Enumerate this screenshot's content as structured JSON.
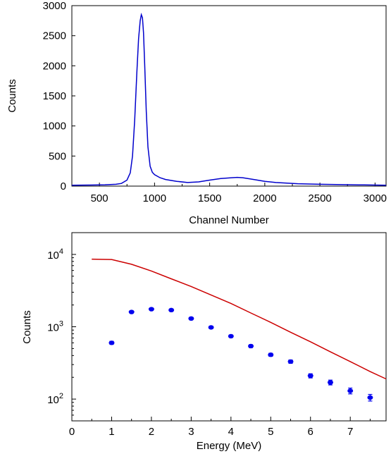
{
  "chart_data": [
    {
      "type": "line",
      "xlabel": "Channel Number",
      "ylabel": "Counts",
      "xlim": [
        250,
        3100
      ],
      "ylim": [
        0,
        3000
      ],
      "x_ticks": [
        500,
        1000,
        1500,
        2000,
        2500,
        3000
      ],
      "y_ticks": [
        0,
        500,
        1000,
        1500,
        2000,
        2500,
        3000
      ],
      "x_tick_labels": [
        "500",
        "1000",
        "1500",
        "2000",
        "2500",
        "3000"
      ],
      "y_tick_labels": [
        "0",
        "500",
        "1000",
        "1500",
        "2000",
        "2500",
        "3000"
      ],
      "grid": false,
      "series": [
        {
          "color": "#0000cc",
          "x": [
            250,
            400,
            550,
            650,
            700,
            750,
            780,
            800,
            820,
            840,
            855,
            870,
            880,
            890,
            900,
            910,
            925,
            940,
            960,
            980,
            1000,
            1050,
            1100,
            1200,
            1300,
            1400,
            1500,
            1600,
            1700,
            1750,
            1800,
            1900,
            2000,
            2100,
            2200,
            2300,
            2400,
            2500,
            2600,
            2700,
            2800,
            2900,
            3000,
            3100
          ],
          "y": [
            15,
            18,
            22,
            30,
            45,
            100,
            220,
            500,
            1100,
            1900,
            2450,
            2750,
            2850,
            2800,
            2550,
            2050,
            1250,
            650,
            330,
            230,
            190,
            140,
            110,
            80,
            60,
            70,
            100,
            125,
            140,
            145,
            140,
            110,
            80,
            60,
            50,
            40,
            35,
            30,
            28,
            25,
            22,
            20,
            18,
            15
          ]
        }
      ]
    },
    {
      "type": "scatter",
      "xlabel": "Energy (MeV)",
      "ylabel": "Counts",
      "xlim": [
        0,
        7.9
      ],
      "ylim": [
        50,
        20000
      ],
      "yscale": "log",
      "x_ticks": [
        0,
        1,
        2,
        3,
        4,
        5,
        6,
        7
      ],
      "x_tick_labels": [
        "0",
        "1",
        "2",
        "3",
        "4",
        "5",
        "6",
        "7"
      ],
      "y_ticks": [
        100,
        1000,
        10000
      ],
      "y_tick_labels": [
        "10",
        "10",
        "10"
      ],
      "y_tick_superscripts": [
        "2",
        "3",
        "4"
      ],
      "grid": false,
      "series": [
        {
          "color": "#cc0000",
          "style": "line",
          "x": [
            0.5,
            1.0,
            1.5,
            2.0,
            2.5,
            3.0,
            3.5,
            4.0,
            4.5,
            5.0,
            5.5,
            6.0,
            6.5,
            7.0,
            7.5,
            7.9
          ],
          "y": [
            8600,
            8500,
            7300,
            5900,
            4600,
            3600,
            2750,
            2100,
            1550,
            1150,
            840,
            620,
            450,
            330,
            240,
            190
          ]
        },
        {
          "color": "#0000ee",
          "style": "points",
          "x": [
            1.0,
            1.5,
            2.0,
            2.5,
            3.0,
            3.5,
            4.0,
            4.5,
            5.0,
            5.5,
            6.0,
            6.5,
            7.0,
            7.5
          ],
          "y": [
            600,
            1600,
            1750,
            1700,
            1300,
            980,
            740,
            540,
            410,
            330,
            210,
            170,
            130,
            105
          ],
          "yerr": [
            30,
            50,
            55,
            50,
            45,
            35,
            30,
            25,
            20,
            18,
            14,
            13,
            12,
            11
          ]
        }
      ]
    }
  ]
}
